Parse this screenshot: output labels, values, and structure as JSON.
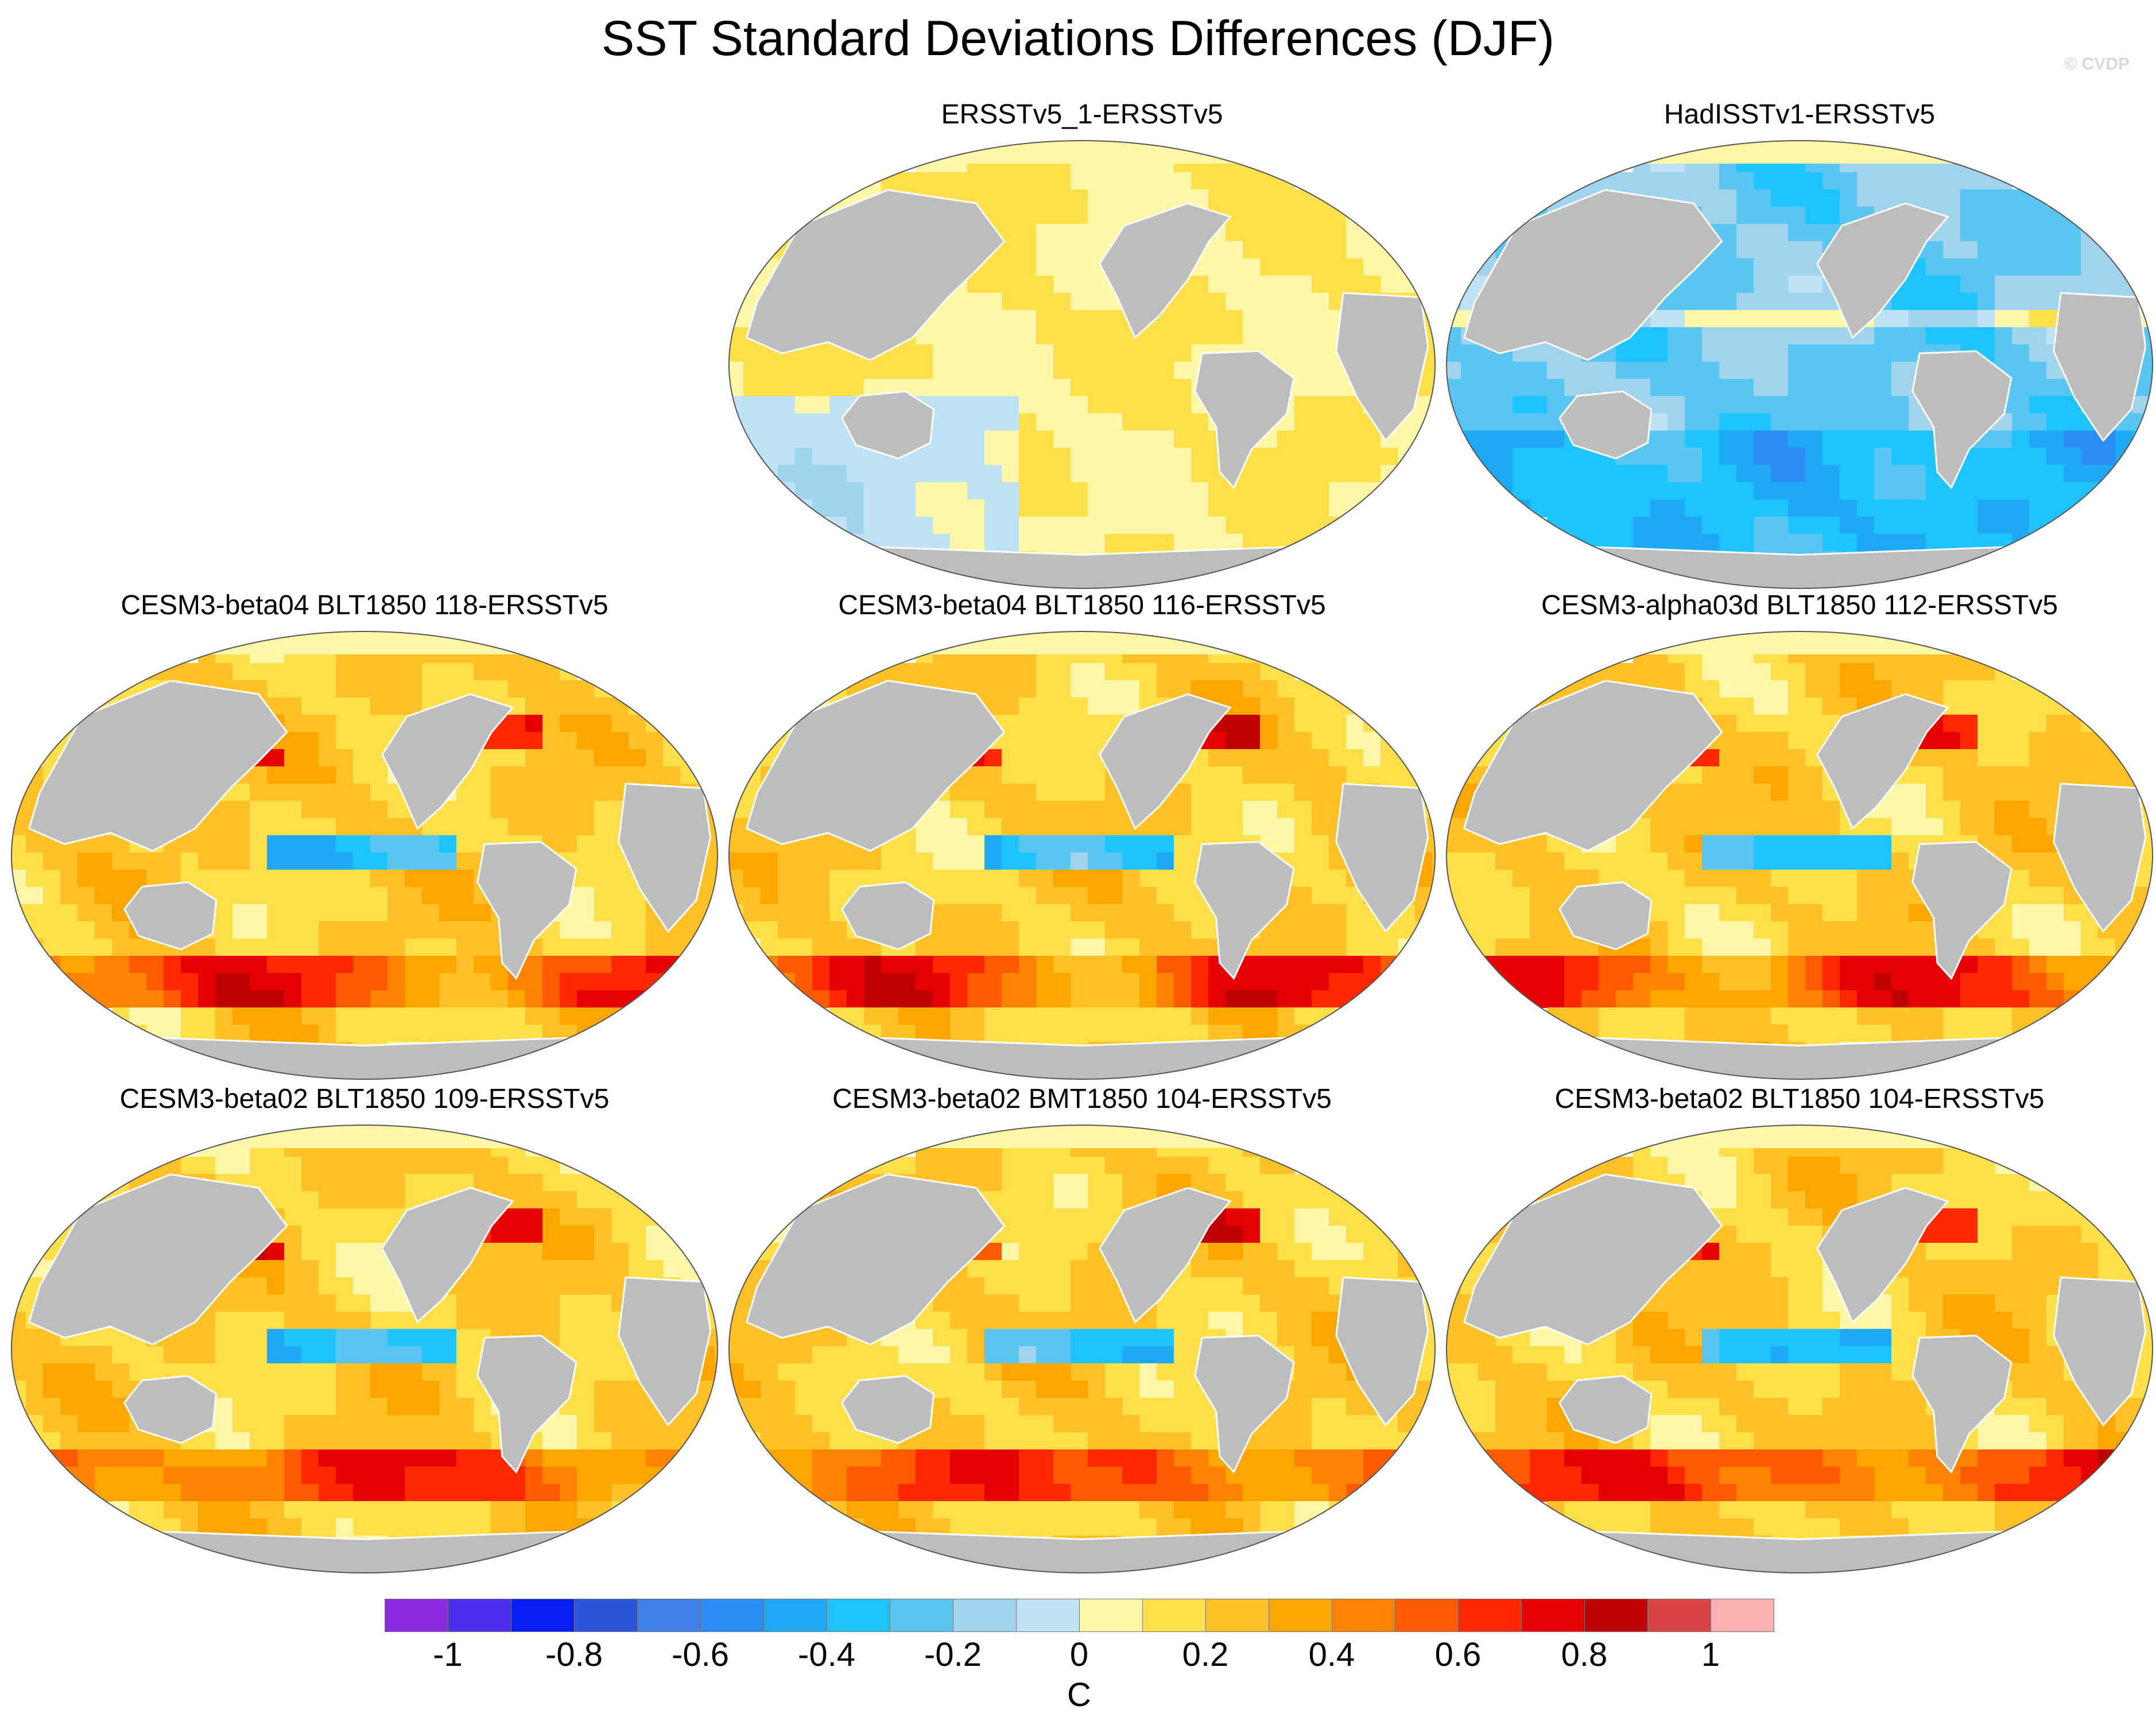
{
  "title": "SST Standard Deviations Differences (DJF)",
  "copyright": "© CVDP",
  "colors": {
    "land": "#bdbdbd",
    "coast": "#ffffff",
    "outline": "#555555",
    "palette": [
      "#8a2be2",
      "#4b2ef0",
      "#0a1ef5",
      "#2a55d6",
      "#3f7fe8",
      "#2a8ef5",
      "#1fa8f5",
      "#1ec4ff",
      "#59c6f2",
      "#9fd3ee",
      "#bfe3f5",
      "#fff7a8",
      "#ffe04a",
      "#ffc125",
      "#ffa500",
      "#ff8200",
      "#ff5a00",
      "#ff2800",
      "#e60000",
      "#c00000",
      "#d94444",
      "#ffb0b0"
    ]
  },
  "panels": [
    {
      "title": "ERSSTv5_1-ERSSTv5",
      "pattern": "obs1"
    },
    {
      "title": "HadISSTv1-ERSSTv5",
      "pattern": "obs2"
    },
    {
      "title": "CESM3-beta04 BLT1850 118-ERSSTv5",
      "pattern": "model"
    },
    {
      "title": "CESM3-beta04 BLT1850 116-ERSSTv5",
      "pattern": "model"
    },
    {
      "title": "CESM3-alpha03d BLT1850 112-ERSSTv5",
      "pattern": "model"
    },
    {
      "title": "CESM3-beta02 BLT1850 109-ERSSTv5",
      "pattern": "model"
    },
    {
      "title": "CESM3-beta02 BMT1850 104-ERSSTv5",
      "pattern": "model"
    },
    {
      "title": "CESM3-beta02 BLT1850 104-ERSSTv5",
      "pattern": "model"
    }
  ],
  "colorbar": {
    "unit": "C",
    "tick_labels": [
      "-1",
      "-0.8",
      "-0.6",
      "-0.4",
      "-0.2",
      "0",
      "0.2",
      "0.4",
      "0.6",
      "0.8",
      "1"
    ],
    "n_boxes": 22,
    "range": [
      -1.1,
      1.1
    ]
  }
}
